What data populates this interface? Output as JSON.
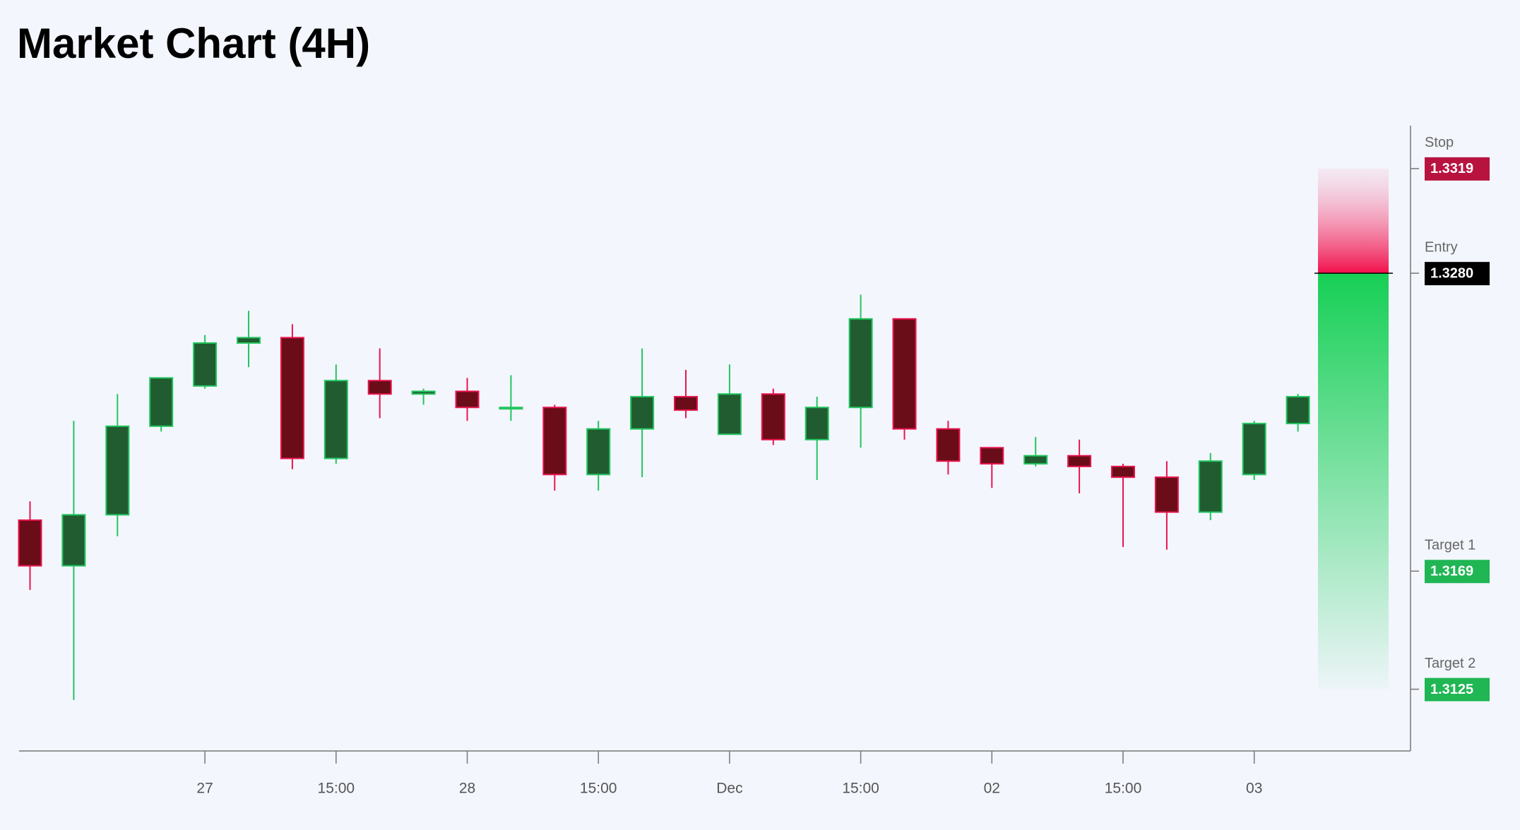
{
  "chart_data": {
    "type": "candlestick",
    "title": "Market Chart (4H)",
    "categories": [
      null,
      null,
      null,
      null,
      "27",
      null,
      null,
      "15:00",
      null,
      null,
      "28",
      null,
      null,
      "15:00",
      null,
      null,
      "Dec",
      null,
      null,
      "15:00",
      null,
      null,
      "02",
      null,
      null,
      "15:00",
      null,
      null,
      "03",
      null
    ],
    "open": [
      1.3188,
      1.3171,
      1.319,
      1.3223,
      1.3238,
      1.3254,
      1.3256,
      1.3211,
      1.324,
      1.3235,
      1.3236,
      1.323,
      1.323,
      1.3205,
      1.3222,
      1.3234,
      1.322,
      1.3235,
      1.3218,
      1.323,
      1.3263,
      1.3222,
      1.3215,
      1.3209,
      1.3212,
      1.3208,
      1.3204,
      1.3191,
      1.3205,
      1.3224
    ],
    "high": [
      1.3195,
      1.3225,
      1.3235,
      1.3241,
      1.3257,
      1.3266,
      1.3261,
      1.3246,
      1.3252,
      1.3237,
      1.3241,
      1.3242,
      1.3231,
      1.3225,
      1.3252,
      1.3244,
      1.3246,
      1.3237,
      1.3234,
      1.3272,
      1.3263,
      1.3225,
      1.3215,
      1.3219,
      1.3218,
      1.3209,
      1.321,
      1.3213,
      1.3225,
      1.3235
    ],
    "low": [
      1.3162,
      1.3121,
      1.3182,
      1.3221,
      1.3237,
      1.3245,
      1.3207,
      1.3209,
      1.3226,
      1.3231,
      1.3225,
      1.3225,
      1.3199,
      1.3199,
      1.3204,
      1.3226,
      1.322,
      1.3216,
      1.3203,
      1.3215,
      1.3218,
      1.3205,
      1.32,
      1.3208,
      1.3198,
      1.3178,
      1.3177,
      1.3188,
      1.3203,
      1.3221
    ],
    "close": [
      1.3171,
      1.319,
      1.3223,
      1.3241,
      1.3254,
      1.3256,
      1.3211,
      1.324,
      1.3235,
      1.3236,
      1.323,
      1.323,
      1.3205,
      1.3222,
      1.3234,
      1.3229,
      1.3235,
      1.3218,
      1.323,
      1.3263,
      1.3222,
      1.321,
      1.3209,
      1.3212,
      1.3208,
      1.3204,
      1.3191,
      1.321,
      1.3224,
      1.3234
    ],
    "up_color": "#22c55e",
    "up_fill": "#215c31",
    "down_color": "#e8154f",
    "down_fill": "#6a0d18",
    "ylim": [
      1.3102,
      1.3335
    ],
    "levels": [
      {
        "name": "Stop",
        "value": 1.3319,
        "label": "1.3319",
        "color": "#b8133f"
      },
      {
        "name": "Entry",
        "value": 1.328,
        "label": "1.3280",
        "color": "#000000"
      },
      {
        "name": "Target 1",
        "value": 1.3169,
        "label": "1.3169",
        "color": "#1fb653"
      },
      {
        "name": "Target 2",
        "value": 1.3125,
        "label": "1.3125",
        "color": "#1fb653"
      }
    ]
  }
}
